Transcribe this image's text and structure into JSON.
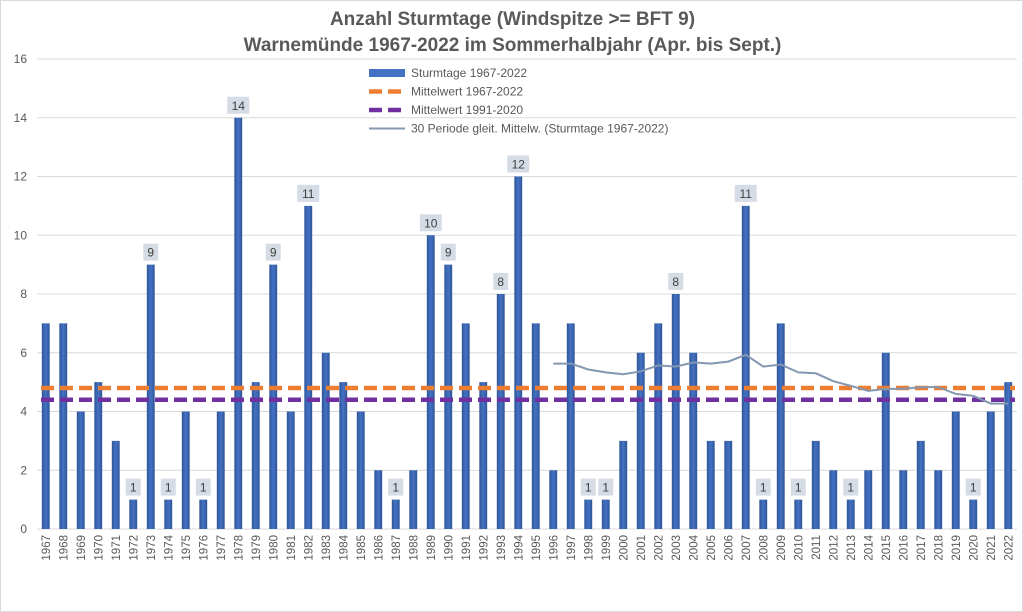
{
  "chart_data": {
    "type": "bar",
    "title": "Anzahl Sturmtage (Windspitze >= BFT 9)",
    "subtitle": "Warnemünde 1967-2022 im Sommerhalbjahr (Apr. bis Sept.)",
    "xlabel": "",
    "ylabel": "",
    "ylim": [
      0,
      16
    ],
    "yticks": [
      "0",
      "2",
      "4",
      "6",
      "8",
      "10",
      "12",
      "14",
      "16"
    ],
    "grid": true,
    "legend_position": "top-center",
    "categories": [
      "1967",
      "1968",
      "1969",
      "1970",
      "1971",
      "1972",
      "1973",
      "1974",
      "1975",
      "1976",
      "1977",
      "1978",
      "1979",
      "1980",
      "1981",
      "1982",
      "1983",
      "1984",
      "1985",
      "1986",
      "1987",
      "1988",
      "1989",
      "1990",
      "1991",
      "1992",
      "1993",
      "1994",
      "1995",
      "1996",
      "1997",
      "1998",
      "1999",
      "2000",
      "2001",
      "2002",
      "2003",
      "2004",
      "2005",
      "2006",
      "2007",
      "2008",
      "2009",
      "2010",
      "2011",
      "2012",
      "2013",
      "2014",
      "2015",
      "2016",
      "2017",
      "2018",
      "2019",
      "2020",
      "2021",
      "2022"
    ],
    "series": [
      {
        "name": "Sturmtage 1967-2022",
        "kind": "bar",
        "color": "#4472c4",
        "values": [
          7,
          7,
          4,
          5,
          3,
          1,
          9,
          1,
          4,
          1,
          4,
          14,
          5,
          9,
          4,
          11,
          6,
          5,
          4,
          2,
          1,
          2,
          10,
          9,
          7,
          5,
          8,
          12,
          7,
          2,
          7,
          1,
          1,
          3,
          6,
          7,
          8,
          6,
          3,
          3,
          11,
          1,
          7,
          1,
          3,
          2,
          1,
          2,
          6,
          2,
          3,
          2,
          4,
          1,
          4,
          5
        ]
      },
      {
        "name": "Mittelwert 1967-2022",
        "kind": "hline",
        "color": "#ed7d31",
        "value": 4.8
      },
      {
        "name": "Mittelwert 1991-2020",
        "kind": "hline",
        "color": "#7030a0",
        "value": 4.4
      },
      {
        "name": "30 Periode gleit. Mittelw. (Sturmtage 1967-2022)",
        "kind": "line",
        "color": "#8497b0",
        "values": [
          null,
          null,
          null,
          null,
          null,
          null,
          null,
          null,
          null,
          null,
          null,
          null,
          null,
          null,
          null,
          null,
          null,
          null,
          null,
          null,
          null,
          null,
          null,
          null,
          null,
          null,
          null,
          null,
          null,
          5.63,
          5.63,
          5.43,
          5.33,
          5.27,
          5.37,
          5.57,
          5.53,
          5.67,
          5.63,
          5.7,
          5.93,
          5.53,
          5.6,
          5.33,
          5.3,
          5.03,
          4.87,
          4.7,
          4.77,
          4.77,
          4.83,
          4.83,
          4.6,
          4.53,
          4.27,
          4.27
        ]
      }
    ],
    "data_labels": [
      {
        "year": "1972",
        "text": "1"
      },
      {
        "year": "1973",
        "text": "9"
      },
      {
        "year": "1974",
        "text": "1"
      },
      {
        "year": "1976",
        "text": "1"
      },
      {
        "year": "1978",
        "text": "14"
      },
      {
        "year": "1980",
        "text": "9"
      },
      {
        "year": "1982",
        "text": "11"
      },
      {
        "year": "1987",
        "text": "1"
      },
      {
        "year": "1989",
        "text": "10"
      },
      {
        "year": "1990",
        "text": "9"
      },
      {
        "year": "1993",
        "text": "8"
      },
      {
        "year": "1994",
        "text": "12"
      },
      {
        "year": "1998",
        "text": "1"
      },
      {
        "year": "1999",
        "text": "1"
      },
      {
        "year": "2003",
        "text": "8"
      },
      {
        "year": "2007",
        "text": "11"
      },
      {
        "year": "2008",
        "text": "1"
      },
      {
        "year": "2010",
        "text": "1"
      },
      {
        "year": "2013",
        "text": "1"
      },
      {
        "year": "2020",
        "text": "1"
      }
    ]
  },
  "colors": {
    "grid": "#d9d9d9",
    "axis_text": "#595959",
    "title": "#595959",
    "label_box": "#d6dce5",
    "label_text": "#404040"
  }
}
